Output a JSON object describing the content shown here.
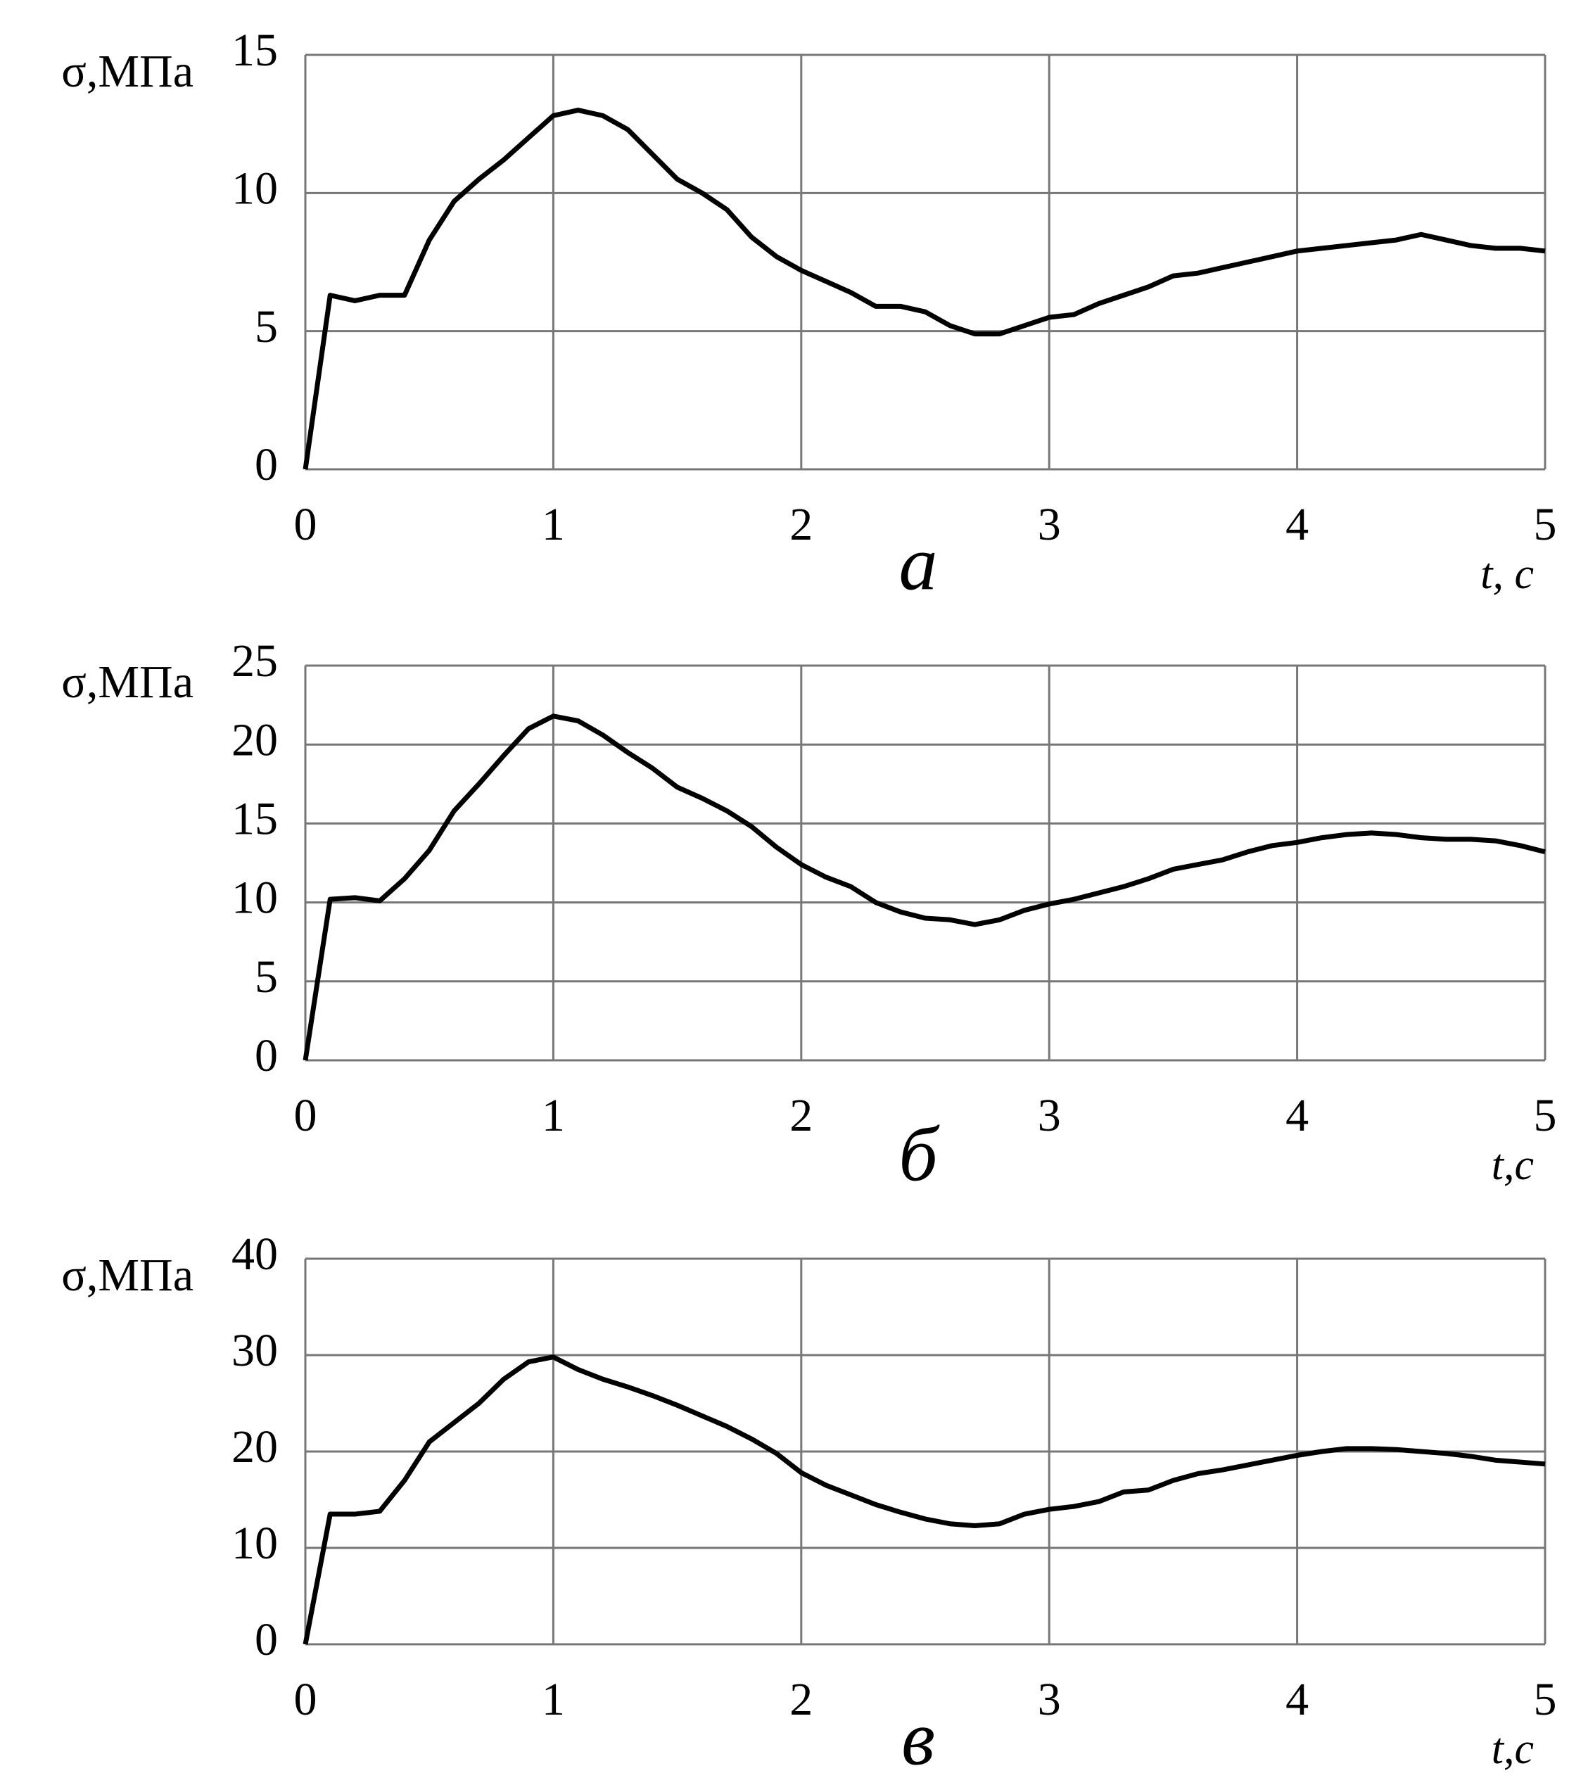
{
  "chart_data": [
    {
      "type": "line",
      "y_label": "σ,МПа",
      "x_label": "t, c",
      "caption": "а",
      "x": [
        0,
        0.1,
        0.2,
        0.3,
        0.4,
        0.5,
        0.6,
        0.7,
        0.8,
        0.9,
        1,
        1.1,
        1.2,
        1.3,
        1.4,
        1.5,
        1.6,
        1.7,
        1.8,
        1.9,
        2,
        2.1,
        2.2,
        2.3,
        2.4,
        2.5,
        2.6,
        2.7,
        2.8,
        2.9,
        3,
        3.1,
        3.2,
        3.3,
        3.4,
        3.5,
        3.6,
        3.7,
        3.8,
        3.9,
        4,
        4.1,
        4.2,
        4.3,
        4.4,
        4.5,
        4.6,
        4.7,
        4.8,
        4.9,
        5
      ],
      "series": [
        {
          "color": "#000000",
          "values": [
            0,
            6.3,
            6.1,
            6.3,
            6.3,
            8.3,
            9.7,
            10.5,
            11.2,
            12.0,
            12.8,
            13.0,
            12.8,
            12.3,
            11.4,
            10.5,
            10.0,
            9.4,
            8.4,
            7.7,
            7.2,
            6.8,
            6.4,
            5.9,
            5.9,
            5.7,
            5.2,
            4.9,
            4.9,
            5.2,
            5.5,
            5.6,
            6.0,
            6.3,
            6.6,
            7.0,
            7.1,
            7.3,
            7.5,
            7.7,
            7.9,
            8.0,
            8.1,
            8.2,
            8.3,
            8.5,
            8.3,
            8.1,
            8.0,
            8.0,
            7.9
          ]
        }
      ],
      "xlim": [
        0,
        5
      ],
      "xticks": [
        0,
        1,
        2,
        3,
        4,
        5
      ],
      "ylim": [
        0,
        15
      ],
      "yticks": [
        0,
        5,
        10,
        15
      ],
      "grid": true
    },
    {
      "type": "line",
      "y_label": "σ,МПа",
      "x_label": "t,c",
      "caption": "б",
      "x": [
        0,
        0.1,
        0.2,
        0.3,
        0.4,
        0.5,
        0.6,
        0.7,
        0.8,
        0.9,
        1,
        1.1,
        1.2,
        1.3,
        1.4,
        1.5,
        1.6,
        1.7,
        1.8,
        1.9,
        2,
        2.1,
        2.2,
        2.3,
        2.4,
        2.5,
        2.6,
        2.7,
        2.8,
        2.9,
        3,
        3.1,
        3.2,
        3.3,
        3.4,
        3.5,
        3.6,
        3.7,
        3.8,
        3.9,
        4,
        4.1,
        4.2,
        4.3,
        4.4,
        4.5,
        4.6,
        4.7,
        4.8,
        4.9,
        5
      ],
      "series": [
        {
          "color": "#000000",
          "values": [
            0,
            10.2,
            10.3,
            10.1,
            11.5,
            13.3,
            15.8,
            17.5,
            19.3,
            21.0,
            21.8,
            21.5,
            20.6,
            19.5,
            18.5,
            17.3,
            16.6,
            15.8,
            14.8,
            13.5,
            12.4,
            11.6,
            11.0,
            10.0,
            9.4,
            9.0,
            8.9,
            8.6,
            8.9,
            9.5,
            9.9,
            10.2,
            10.6,
            11.0,
            11.5,
            12.1,
            12.4,
            12.7,
            13.2,
            13.6,
            13.8,
            14.1,
            14.3,
            14.4,
            14.3,
            14.1,
            14.0,
            14.0,
            13.9,
            13.6,
            13.2
          ]
        }
      ],
      "xlim": [
        0,
        5
      ],
      "xticks": [
        0,
        1,
        2,
        3,
        4,
        5
      ],
      "ylim": [
        0,
        25
      ],
      "yticks": [
        0,
        5,
        10,
        15,
        20,
        25
      ],
      "grid": true
    },
    {
      "type": "line",
      "y_label": "σ,МПа",
      "x_label": "t,c",
      "caption": "в",
      "x": [
        0,
        0.1,
        0.2,
        0.3,
        0.4,
        0.5,
        0.6,
        0.7,
        0.8,
        0.9,
        1,
        1.1,
        1.2,
        1.3,
        1.4,
        1.5,
        1.6,
        1.7,
        1.8,
        1.9,
        2,
        2.1,
        2.2,
        2.3,
        2.4,
        2.5,
        2.6,
        2.7,
        2.8,
        2.9,
        3,
        3.1,
        3.2,
        3.3,
        3.4,
        3.5,
        3.6,
        3.7,
        3.8,
        3.9,
        4,
        4.1,
        4.2,
        4.3,
        4.4,
        4.5,
        4.6,
        4.7,
        4.8,
        4.9,
        5
      ],
      "series": [
        {
          "color": "#000000",
          "values": [
            0,
            13.5,
            13.5,
            13.8,
            17.0,
            21.0,
            23.0,
            25.0,
            27.5,
            29.3,
            29.8,
            28.5,
            27.5,
            26.7,
            25.8,
            24.8,
            23.7,
            22.6,
            21.3,
            19.8,
            17.8,
            16.5,
            15.5,
            14.5,
            13.7,
            13.0,
            12.5,
            12.3,
            12.5,
            13.5,
            14.0,
            14.3,
            14.8,
            15.8,
            16.0,
            17.0,
            17.7,
            18.1,
            18.6,
            19.1,
            19.6,
            20.0,
            20.3,
            20.3,
            20.2,
            20.0,
            19.8,
            19.5,
            19.1,
            18.9,
            18.7
          ]
        }
      ],
      "xlim": [
        0,
        5
      ],
      "xticks": [
        0,
        1,
        2,
        3,
        4,
        5
      ],
      "ylim": [
        0,
        40
      ],
      "yticks": [
        0,
        10,
        20,
        30,
        40
      ],
      "grid": true
    }
  ]
}
